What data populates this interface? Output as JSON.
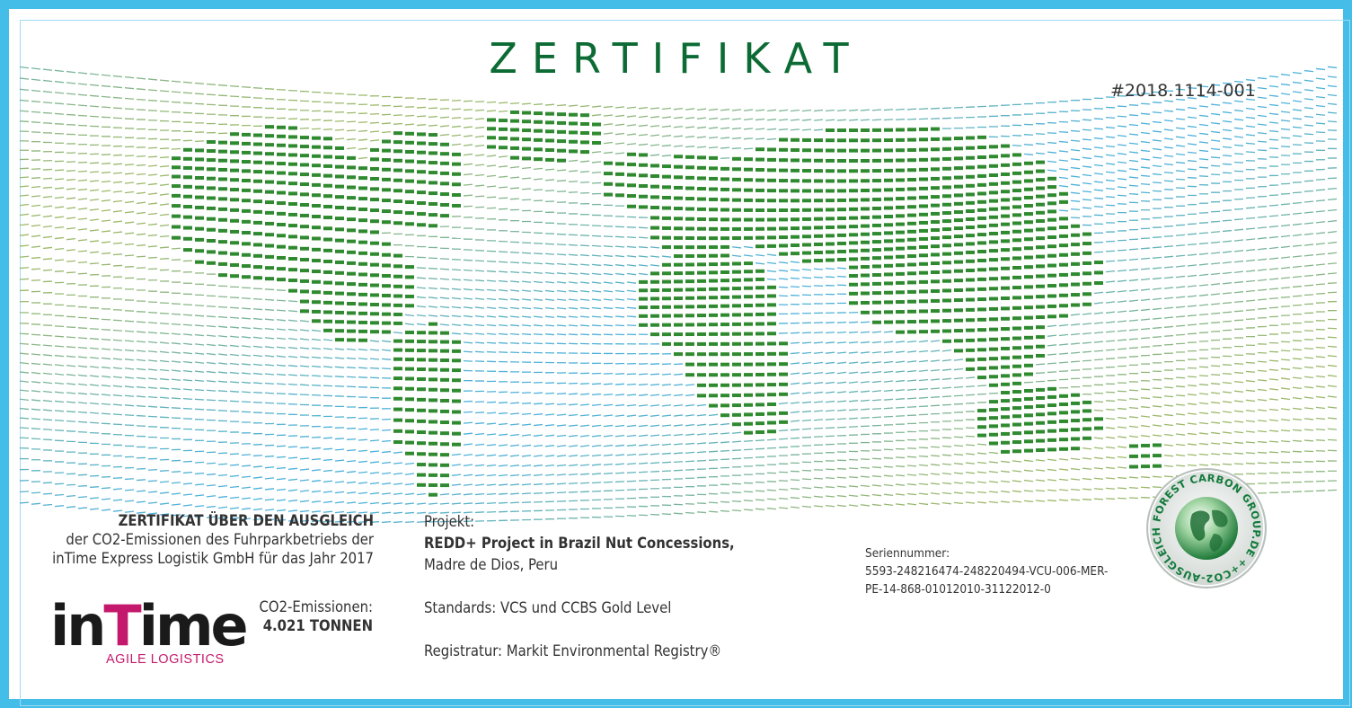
{
  "certificate": {
    "title": "ZERTIFIKAT",
    "number": "#2018.1114-001"
  },
  "statement": {
    "heading": "ZERTIFIKAT ÜBER DEN AUSGLEICH",
    "line1": "der CO2-Emissionen des Fuhrparkbetriebs der",
    "line2": "inTime Express Logistik GmbH für das Jahr 2017"
  },
  "emissions": {
    "label": "CO2-Emissionen:",
    "value": "4.021 TONNEN"
  },
  "logo": {
    "word_part1": "in",
    "word_part2": "T",
    "word_part3": "ime",
    "tagline": "AGILE LOGISTICS",
    "brand_color": "#c4186c"
  },
  "project": {
    "label": "Projekt:",
    "name": "REDD+ Project in Brazil Nut Concessions,",
    "location": "Madre de Dios, Peru",
    "standards": "Standards: VCS und CCBS Gold Level",
    "registry": "Registratur:  Markit Environmental Registry®"
  },
  "serial": {
    "label": "Seriennummer:",
    "line1": "5593-248216474-248220494-VCU-006-MER-",
    "line2": "PE-14-868-01012010-31122012-0"
  },
  "seal": {
    "ring_text": "FOREST CARBON GROUP.DE ++CO2-AUSGLEICH++"
  },
  "colors": {
    "frame": "#44bde9",
    "title_green": "#0c6b34",
    "map_green": "#2f8a2f",
    "wave_blue": "#3aa9d8",
    "wave_olive": "#a9b43a"
  }
}
